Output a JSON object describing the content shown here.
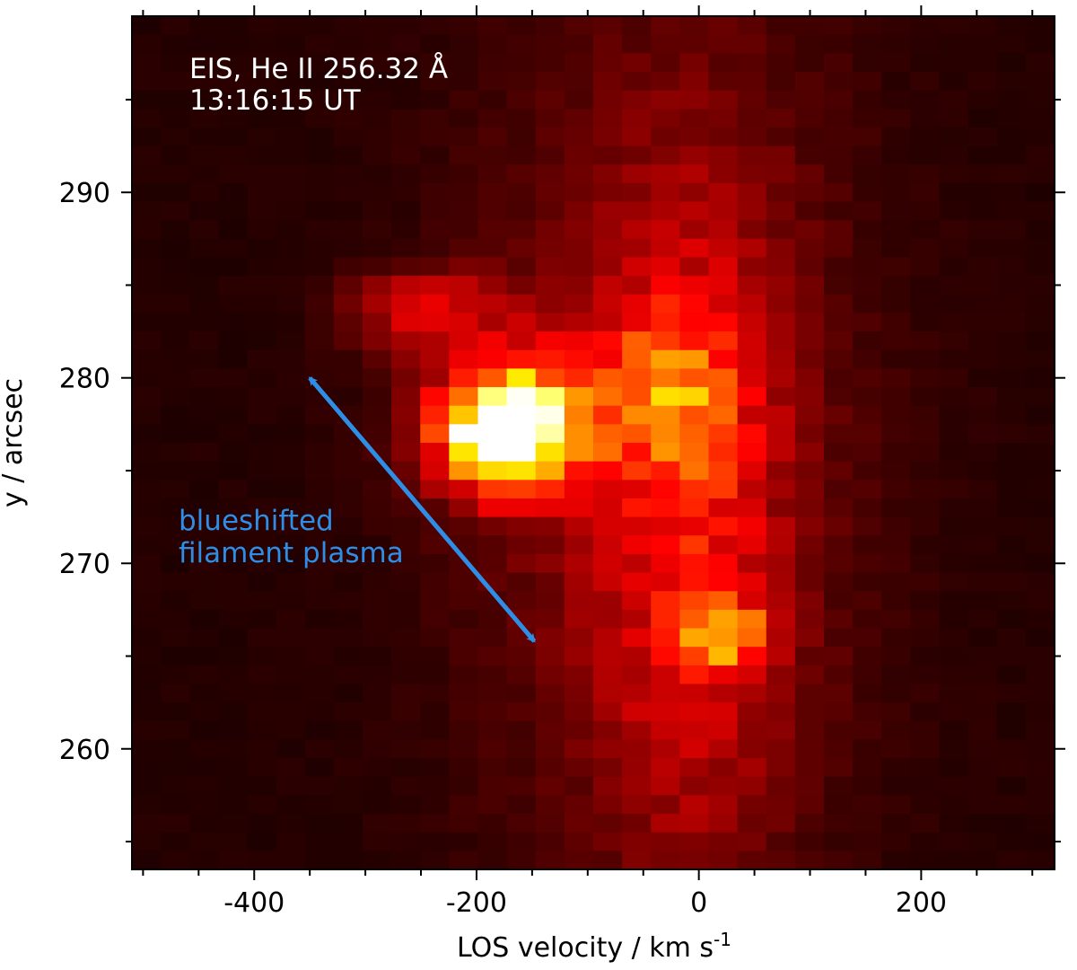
{
  "chart_data": {
    "type": "heatmap",
    "title": "",
    "xlabel_main": "LOS velocity / km s",
    "xlabel_exp": "-1",
    "ylabel": "y / arcsec",
    "xlim": [
      -510,
      320
    ],
    "ylim": [
      253.5,
      299.5
    ],
    "xticks": [
      -400,
      -200,
      0,
      200
    ],
    "xtick_labels": [
      "-400",
      "-200",
      "0",
      "200"
    ],
    "yticks": [
      260,
      270,
      280,
      290
    ],
    "ytick_labels": [
      "260",
      "270",
      "280",
      "290"
    ],
    "colormap": "hot (black-red-orange-white)",
    "grid": false,
    "legend": "none",
    "annotations": {
      "instrument": "EIS, He II 256.32 Å",
      "time": "13:16:15 UT",
      "feature_line1": "blueshifted",
      "feature_line2": "filament plasma",
      "feature_color": "#2e8ee6",
      "arrow_from": [
        -350,
        280
      ],
      "arrow_to": [
        -148,
        265.8
      ]
    },
    "intensity_peaks": [
      {
        "velocity": -175,
        "y": 277,
        "intensity": 1.0,
        "sx": 38,
        "sy": 1.9
      },
      {
        "velocity": -160,
        "y": 278,
        "intensity": 0.35,
        "sx": 60,
        "sy": 3.2
      },
      {
        "velocity": -250,
        "y": 283.7,
        "intensity": 0.28,
        "sx": 45,
        "sy": 1.5
      },
      {
        "velocity": -25,
        "y": 279.5,
        "intensity": 0.25,
        "sx": 45,
        "sy": 2.8
      },
      {
        "velocity": 25,
        "y": 266.2,
        "intensity": 0.42,
        "sx": 25,
        "sy": 1.2
      },
      {
        "velocity": -5,
        "y": 272,
        "intensity": 0.22,
        "sx": 55,
        "sy": 12
      },
      {
        "velocity": -30,
        "y": 276,
        "intensity": 0.18,
        "sx": 120,
        "sy": 18
      }
    ]
  }
}
